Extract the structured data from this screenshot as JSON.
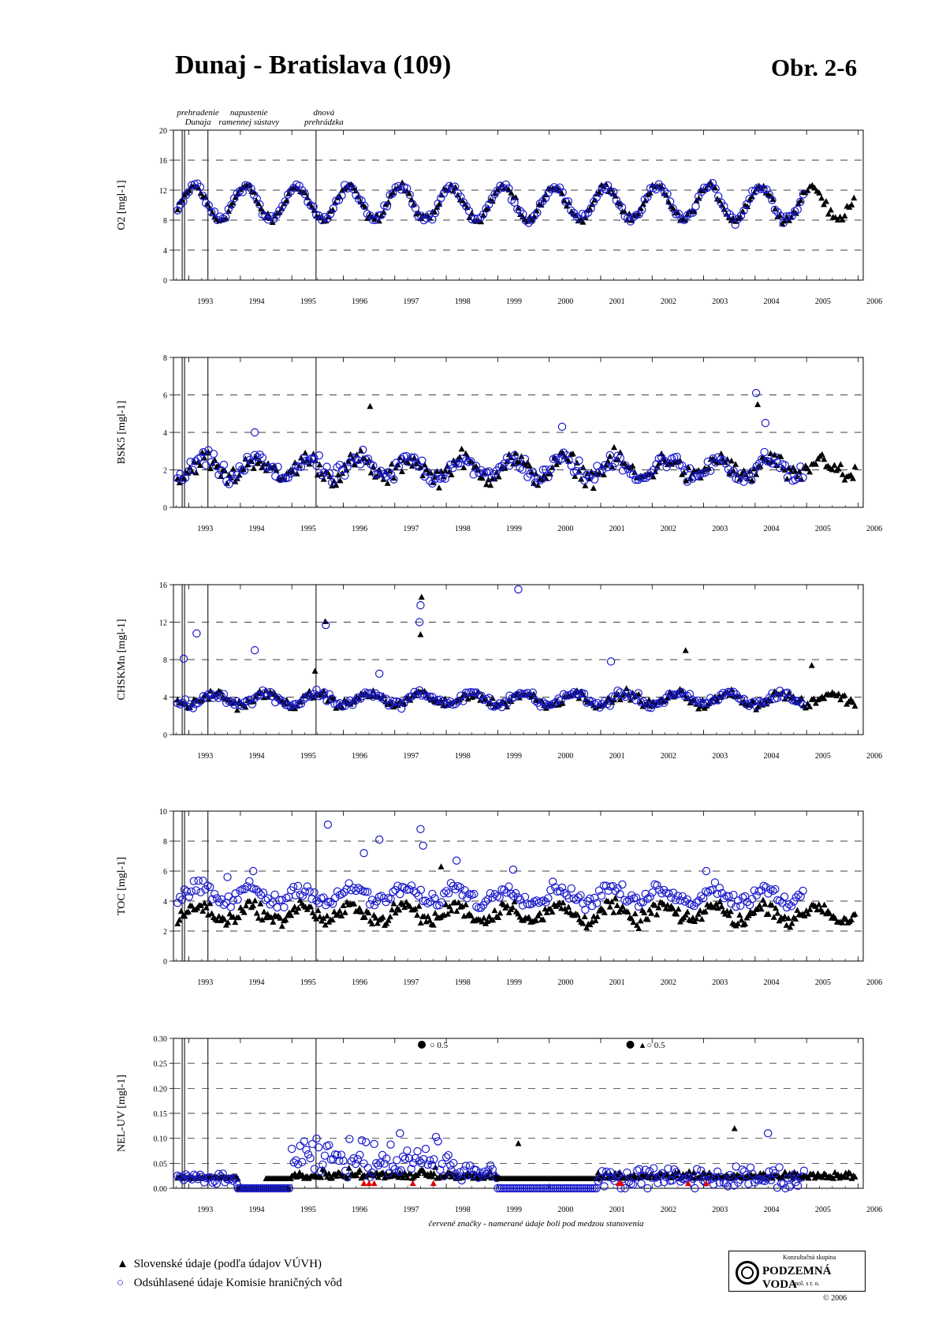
{
  "header": {
    "title": "Dunaj - Bratislava (109)",
    "figure_label": "Obr. 2-6"
  },
  "events": [
    {
      "year": 1992.87,
      "label1": "prehradenie",
      "label2": "Dunaja"
    },
    {
      "year": 1993.37,
      "label1": "napustenie",
      "label2": "ramennej sústavy"
    },
    {
      "year": 1995.47,
      "label1": "dnová",
      "label2": "prehrádzka"
    }
  ],
  "footer": {
    "note": "červené značky - namerané údaje boli pod medzou stanovenia",
    "legend_slovak": "Slovenské údaje (podľa údajov VÚVH)",
    "legend_commission": "Odsúhlasené údaje Komisie hraničných vôd",
    "logo_top": "Konzultačná skupina",
    "logo_name": "PODZEMNÁ VODA",
    "logo_sub": "spol. s r. o.",
    "copyright": "© 2006"
  },
  "colors": {
    "slovak": "#000000",
    "commission": "#1a1acc",
    "below_limit": "#e00000"
  },
  "chart_data": [
    {
      "type": "scatter",
      "ylabel": "O2 [mgl-1]",
      "ylim": [
        0,
        20
      ],
      "yticks": [
        "0",
        "4",
        "8",
        "12",
        "16",
        "20"
      ],
      "xlim": [
        1992.7,
        2006.1
      ],
      "xticks": [
        "1993",
        "1994",
        "1995",
        "1996",
        "1997",
        "1998",
        "1999",
        "2000",
        "2001",
        "2002",
        "2003",
        "2004",
        "2005",
        "2006"
      ],
      "grid": "dashed horizontal",
      "seasonal": {
        "mean": 10.3,
        "amp": 2.2,
        "phase": 0.1,
        "noise": 0.8
      },
      "series": [
        {
          "name": "Slovenské údaje (podľa údajov VÚVH)",
          "marker": "triangle",
          "x_range": [
            1992.78,
            2005.95
          ],
          "step": 0.045
        },
        {
          "name": "Odsúhlasené údaje Komisie hraničných vôd",
          "marker": "circle",
          "x_range": [
            1992.78,
            2004.95
          ],
          "step": 0.055
        }
      ]
    },
    {
      "type": "scatter",
      "ylabel": "BSK5 [mgl-1]",
      "ylim": [
        0,
        8
      ],
      "yticks": [
        "0",
        "2",
        "4",
        "6",
        "8"
      ],
      "xlim": [
        1992.7,
        2006.1
      ],
      "xticks": [
        "1993",
        "1994",
        "1995",
        "1996",
        "1997",
        "1998",
        "1999",
        "2000",
        "2001",
        "2002",
        "2003",
        "2004",
        "2005",
        "2006"
      ],
      "grid": "dashed horizontal",
      "seasonal": {
        "mean": 2.1,
        "amp": 0.5,
        "phase": 0.3,
        "noise": 0.7
      },
      "outliers": [
        {
          "x": 2004.02,
          "y": 6.1,
          "marker": "circle"
        },
        {
          "x": 2004.05,
          "y": 5.5,
          "marker": "triangle"
        },
        {
          "x": 1996.52,
          "y": 5.4,
          "marker": "triangle"
        },
        {
          "x": 1994.28,
          "y": 4.0,
          "marker": "circle"
        },
        {
          "x": 2000.25,
          "y": 4.3,
          "marker": "circle"
        },
        {
          "x": 2004.2,
          "y": 4.5,
          "marker": "circle"
        }
      ],
      "series": [
        {
          "name": "Slovenské údaje (podľa údajov VÚVH)",
          "marker": "triangle",
          "x_range": [
            1992.78,
            2005.95
          ],
          "step": 0.04
        },
        {
          "name": "Odsúhlasené údaje Komisie hraničných vôd",
          "marker": "circle",
          "x_range": [
            1992.78,
            2004.95
          ],
          "step": 0.05
        }
      ]
    },
    {
      "type": "scatter",
      "ylabel": "CHSKMn [mgl-1]",
      "ylim": [
        0,
        16
      ],
      "yticks": [
        "0",
        "4",
        "8",
        "12",
        "16"
      ],
      "xlim": [
        1992.7,
        2006.1
      ],
      "xticks": [
        "1993",
        "1994",
        "1995",
        "1996",
        "1997",
        "1998",
        "1999",
        "2000",
        "2001",
        "2002",
        "2003",
        "2004",
        "2005",
        "2006"
      ],
      "grid": "dashed horizontal",
      "seasonal": {
        "mean": 3.8,
        "amp": 0.6,
        "phase": 0.5,
        "noise": 0.7
      },
      "outliers": [
        {
          "x": 1999.4,
          "y": 15.5,
          "marker": "circle"
        },
        {
          "x": 1997.52,
          "y": 14.7,
          "marker": "triangle"
        },
        {
          "x": 1997.5,
          "y": 13.8,
          "marker": "circle"
        },
        {
          "x": 1997.48,
          "y": 12.0,
          "marker": "circle"
        },
        {
          "x": 1997.5,
          "y": 10.7,
          "marker": "triangle"
        },
        {
          "x": 1995.65,
          "y": 12.1,
          "marker": "triangle"
        },
        {
          "x": 1995.66,
          "y": 11.7,
          "marker": "circle"
        },
        {
          "x": 1993.15,
          "y": 10.8,
          "marker": "circle"
        },
        {
          "x": 1994.28,
          "y": 9.0,
          "marker": "circle"
        },
        {
          "x": 1992.9,
          "y": 8.1,
          "marker": "circle"
        },
        {
          "x": 2001.2,
          "y": 7.8,
          "marker": "circle"
        },
        {
          "x": 2002.65,
          "y": 9.0,
          "marker": "triangle"
        },
        {
          "x": 2005.1,
          "y": 7.4,
          "marker": "triangle"
        },
        {
          "x": 1995.45,
          "y": 6.8,
          "marker": "triangle"
        },
        {
          "x": 1996.7,
          "y": 6.5,
          "marker": "circle"
        }
      ],
      "series": [
        {
          "name": "Slovenské údaje (podľa údajov VÚVH)",
          "marker": "triangle",
          "x_range": [
            1992.78,
            2005.95
          ],
          "step": 0.04
        },
        {
          "name": "Odsúhlasené údaje Komisie hraničných vôd",
          "marker": "circle",
          "x_range": [
            1992.78,
            2004.95
          ],
          "step": 0.05
        }
      ]
    },
    {
      "type": "scatter",
      "ylabel": "TOC [mgl-1]",
      "ylim": [
        0,
        10
      ],
      "yticks": [
        "0",
        "2",
        "4",
        "6",
        "8",
        "10"
      ],
      "xlim": [
        1992.7,
        2006.1
      ],
      "xticks": [
        "1993",
        "1994",
        "1995",
        "1996",
        "1997",
        "1998",
        "1999",
        "2000",
        "2001",
        "2002",
        "2003",
        "2004",
        "2005",
        "2006"
      ],
      "grid": "dashed horizontal",
      "seasonal": {
        "mean": 3.2,
        "amp": 0.5,
        "phase": 0.2,
        "noise": 0.7
      },
      "circle_offset": 1.2,
      "outliers": [
        {
          "x": 1995.7,
          "y": 9.1,
          "marker": "circle"
        },
        {
          "x": 1997.5,
          "y": 8.8,
          "marker": "circle"
        },
        {
          "x": 1996.7,
          "y": 8.1,
          "marker": "circle"
        },
        {
          "x": 1997.55,
          "y": 7.7,
          "marker": "circle"
        },
        {
          "x": 1996.4,
          "y": 7.2,
          "marker": "circle"
        },
        {
          "x": 1998.2,
          "y": 6.7,
          "marker": "circle"
        },
        {
          "x": 1997.9,
          "y": 6.3,
          "marker": "triangle"
        },
        {
          "x": 2003.05,
          "y": 6.0,
          "marker": "circle"
        },
        {
          "x": 1994.25,
          "y": 6.0,
          "marker": "circle"
        },
        {
          "x": 1993.75,
          "y": 5.6,
          "marker": "circle"
        },
        {
          "x": 1999.3,
          "y": 6.1,
          "marker": "circle"
        }
      ],
      "series": [
        {
          "name": "Slovenské údaje (podľa údajov VÚVH)",
          "marker": "triangle",
          "x_range": [
            1992.78,
            2005.95
          ],
          "step": 0.035
        },
        {
          "name": "Odsúhlasené údaje Komisie hraničných vôd",
          "marker": "circle",
          "x_range": [
            1992.78,
            2004.95
          ],
          "step": 0.045
        }
      ]
    },
    {
      "type": "scatter",
      "ylabel": "NEL-UV [mgl-1]",
      "ylim": [
        0,
        0.3
      ],
      "yticks": [
        "0.00",
        "0.05",
        "0.10",
        "0.15",
        "0.20",
        "0.25",
        "0.30"
      ],
      "xlim": [
        1992.7,
        2006.1
      ],
      "xticks": [
        "1993",
        "1994",
        "1995",
        "1996",
        "1997",
        "1998",
        "1999",
        "2000",
        "2001",
        "2002",
        "2003",
        "2004",
        "2005",
        "2006"
      ],
      "grid": "dashed horizontal",
      "offscale_annotations": [
        {
          "x": 1997.8,
          "text": "○ 0.5"
        },
        {
          "x": 2001.85,
          "text": "▲○ 0.5"
        }
      ],
      "segments": [
        {
          "from": 1992.78,
          "to": 1993.95,
          "triangle": 0.02,
          "circle": 0.02,
          "spread": 0.01
        },
        {
          "from": 1993.95,
          "to": 1994.95,
          "triangle": 0.0,
          "circle": 0.0,
          "spread": 0.0
        },
        {
          "from": 1994.5,
          "to": 1995.0,
          "triangle": 0.02,
          "circle": null,
          "spread": 0.0
        },
        {
          "from": 1995.0,
          "to": 1998.1,
          "triangle": 0.02,
          "circle": 0.06,
          "spread": 0.03
        },
        {
          "from": 1998.1,
          "to": 1999.0,
          "triangle": 0.02,
          "circle": 0.03,
          "spread": 0.02
        },
        {
          "from": 1999.0,
          "to": 2000.95,
          "triangle": 0.02,
          "circle": 0.0,
          "spread": 0.0
        },
        {
          "from": 2000.95,
          "to": 2004.95,
          "triangle": 0.02,
          "circle": 0.02,
          "spread": 0.02
        },
        {
          "from": 2004.95,
          "to": 2005.95,
          "triangle": 0.02,
          "circle": null,
          "spread": 0.02
        }
      ],
      "below_limit_points": [
        1996.4,
        1996.5,
        1996.6,
        1997.35,
        1997.75,
        2001.35,
        2001.4,
        2002.7,
        2003.05
      ],
      "outliers": [
        {
          "x": 2003.6,
          "y": 0.12,
          "marker": "triangle"
        },
        {
          "x": 2004.25,
          "y": 0.11,
          "marker": "circle"
        },
        {
          "x": 1997.1,
          "y": 0.11,
          "marker": "circle"
        },
        {
          "x": 1999.4,
          "y": 0.09,
          "marker": "triangle"
        }
      ],
      "series": [
        {
          "name": "Slovenské údaje (podľa údajov VÚVH)",
          "marker": "triangle"
        },
        {
          "name": "Odsúhlasené údaje Komisie hraničných vôd",
          "marker": "circle"
        }
      ]
    }
  ]
}
